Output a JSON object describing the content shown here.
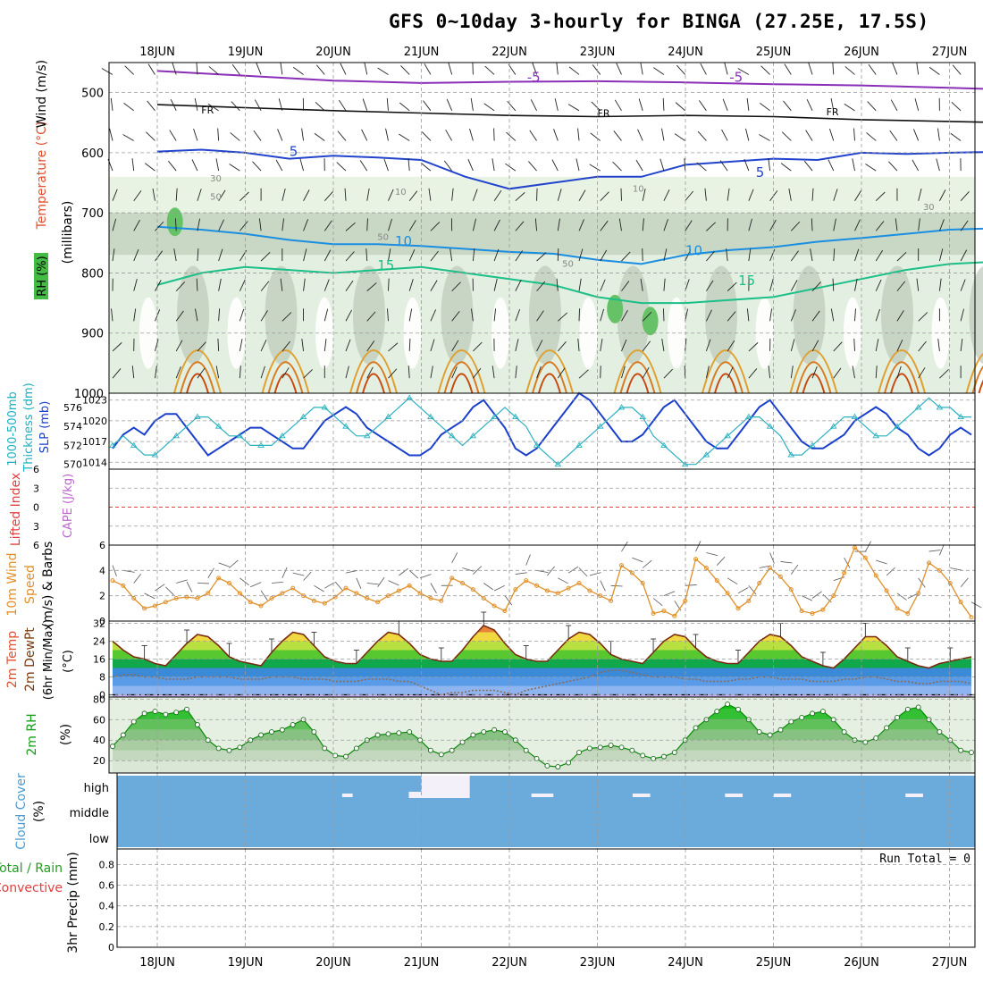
{
  "title": "GFS 0~10day 3-hourly for BINGA (27.25E, 17.5S)",
  "chart_data": [
    {
      "type": "heatmap",
      "id": "upper-air",
      "x_date_labels": [
        "18JUN",
        "19JUN",
        "20JUN",
        "21JUN",
        "22JUN",
        "23JUN",
        "24JUN",
        "25JUN",
        "26JUN",
        "27JUN"
      ],
      "ylabel_parts": [
        "RH (%)",
        "Temperature (°C)",
        "Wind (m/s)"
      ],
      "ylabel_units": "(millibars)",
      "y_ticks": [
        500,
        600,
        700,
        800,
        900,
        1000
      ],
      "ylim": [
        450,
        1000
      ],
      "freezing_label": "FR",
      "temp_labels": [
        "-5",
        "-5",
        "5",
        "5",
        "10",
        "10",
        "15",
        "15"
      ],
      "rh_labels": [
        "30",
        "50",
        "10",
        "50",
        "50",
        "10",
        "30"
      ],
      "isotherms": [
        {
          "value": -5,
          "color": "#8a2fb8",
          "points": [
            [
              0,
              464
            ],
            [
              1,
              472
            ],
            [
              2,
              480
            ],
            [
              3,
              484
            ],
            [
              4,
              482
            ],
            [
              5,
              481
            ],
            [
              6,
              483
            ],
            [
              7,
              486
            ],
            [
              8,
              488
            ],
            [
              9,
              492
            ],
            [
              9.7,
              495
            ]
          ]
        },
        {
          "value": 0,
          "color": "#111111",
          "points": [
            [
              0,
              520
            ],
            [
              1,
              525
            ],
            [
              2,
              530
            ],
            [
              3,
              534
            ],
            [
              4,
              538
            ],
            [
              5,
              540
            ],
            [
              6,
              538
            ],
            [
              7,
              540
            ],
            [
              8,
              545
            ],
            [
              9,
              548
            ],
            [
              9.7,
              550
            ]
          ]
        },
        {
          "value": 5,
          "color": "#2244cc",
          "points": [
            [
              0,
              598
            ],
            [
              0.5,
              595
            ],
            [
              1,
              600
            ],
            [
              1.5,
              610
            ],
            [
              2,
              605
            ],
            [
              2.5,
              608
            ],
            [
              3,
              612
            ],
            [
              3.5,
              640
            ],
            [
              4,
              660
            ],
            [
              4.5,
              650
            ],
            [
              5,
              640
            ],
            [
              5.5,
              640
            ],
            [
              6,
              620
            ],
            [
              6.5,
              615
            ],
            [
              7,
              610
            ],
            [
              7.5,
              612
            ],
            [
              8,
              600
            ],
            [
              8.5,
              602
            ],
            [
              9,
              600
            ],
            [
              9.7,
              598
            ]
          ]
        },
        {
          "value": 10,
          "color": "#1a8ee0",
          "points": [
            [
              0,
              723
            ],
            [
              0.5,
              728
            ],
            [
              1,
              735
            ],
            [
              1.5,
              745
            ],
            [
              2,
              752
            ],
            [
              2.5,
              752
            ],
            [
              3,
              755
            ],
            [
              3.5,
              760
            ],
            [
              4,
              765
            ],
            [
              4.5,
              768
            ],
            [
              5,
              778
            ],
            [
              5.5,
              785
            ],
            [
              6,
              770
            ],
            [
              6.5,
              762
            ],
            [
              7,
              757
            ],
            [
              7.5,
              748
            ],
            [
              8,
              742
            ],
            [
              8.5,
              735
            ],
            [
              9,
              728
            ],
            [
              9.7,
              725
            ]
          ]
        },
        {
          "value": 15,
          "color": "#1bbf88",
          "points": [
            [
              0,
              820
            ],
            [
              0.5,
              800
            ],
            [
              1,
              790
            ],
            [
              1.5,
              795
            ],
            [
              2,
              800
            ],
            [
              2.5,
              795
            ],
            [
              3,
              790
            ],
            [
              3.5,
              800
            ],
            [
              4,
              810
            ],
            [
              4.5,
              820
            ],
            [
              5,
              840
            ],
            [
              5.5,
              850
            ],
            [
              6,
              850
            ],
            [
              6.5,
              845
            ],
            [
              7,
              840
            ],
            [
              7.5,
              825
            ],
            [
              8,
              810
            ],
            [
              8.5,
              795
            ],
            [
              9,
              785
            ],
            [
              9.7,
              780
            ]
          ]
        }
      ]
    },
    {
      "type": "line",
      "id": "slp-thickness",
      "ylabel_parts": [
        "1000-500mb",
        "Thickness (dm)",
        "SLP (mb)"
      ],
      "left_ticks": [
        570,
        572,
        574,
        576
      ],
      "left_lim": [
        569.5,
        577.5
      ],
      "right_ticks": [
        1014,
        1017,
        1020,
        1023
      ],
      "right_lim": [
        1013,
        1024
      ],
      "series": [
        {
          "name": "SLP (mb)",
          "axis": "right",
          "color": "#1a3fcc",
          "values": [
            1016,
            1018,
            1019,
            1018,
            1020,
            1021,
            1021,
            1019,
            1017,
            1015,
            1016,
            1017,
            1018,
            1019,
            1019,
            1018,
            1017,
            1016,
            1016,
            1018,
            1020,
            1021,
            1022,
            1021,
            1019,
            1018,
            1017,
            1016,
            1015,
            1015,
            1016,
            1018,
            1019,
            1020,
            1022,
            1023,
            1021,
            1019,
            1016,
            1015,
            1016,
            1018,
            1020,
            1022,
            1024,
            1023,
            1021,
            1019,
            1017,
            1017,
            1018,
            1020,
            1022,
            1023,
            1021,
            1019,
            1017,
            1016,
            1016,
            1018,
            1020,
            1022,
            1023,
            1021,
            1019,
            1017,
            1016,
            1016,
            1017,
            1018,
            1020,
            1021,
            1022,
            1021,
            1019,
            1018,
            1016,
            1015,
            1016,
            1018,
            1019,
            1018
          ]
        },
        {
          "name": "Thickness (dm)",
          "axis": "left",
          "color": "#2ab0c0",
          "values": [
            572,
            573,
            572,
            571,
            571,
            572,
            573,
            574,
            575,
            575,
            574,
            573,
            573,
            572,
            572,
            572,
            573,
            574,
            575,
            576,
            576,
            575,
            574,
            573,
            573,
            574,
            575,
            576,
            577,
            576,
            575,
            574,
            573,
            572,
            573,
            574,
            575,
            576,
            575,
            574,
            572,
            571,
            570,
            571,
            572,
            573,
            574,
            575,
            576,
            576,
            575,
            573,
            572,
            571,
            570,
            570,
            571,
            572,
            573,
            574,
            575,
            575,
            574,
            573,
            571,
            571,
            572,
            573,
            574,
            575,
            575,
            574,
            573,
            573,
            574,
            575,
            576,
            577,
            576,
            576,
            575,
            575
          ]
        }
      ]
    },
    {
      "type": "line",
      "id": "lifted-index",
      "ylabel_parts": [
        "Lifted Index",
        "CAPE (J/kg)"
      ],
      "y_ticks": [
        6,
        3,
        0,
        -3,
        -6
      ],
      "ylim": [
        -6,
        6
      ],
      "reference_value": 0
    },
    {
      "type": "line",
      "id": "wind10m",
      "ylabel_parts": [
        "10m Wind",
        "Speed",
        "(m/s) & Barbs"
      ],
      "y_ticks": [
        0,
        2,
        4,
        6
      ],
      "ylim": [
        0,
        6
      ],
      "series": [
        {
          "name": "Speed",
          "color": "#e0902a",
          "values": [
            3.2,
            2.8,
            1.8,
            1.0,
            1.2,
            1.5,
            1.8,
            1.9,
            1.8,
            2.2,
            3.4,
            3.0,
            2.2,
            1.5,
            1.2,
            1.8,
            2.2,
            2.6,
            2.0,
            1.6,
            1.4,
            1.9,
            2.6,
            2.2,
            1.8,
            1.5,
            2.0,
            2.4,
            2.8,
            2.2,
            1.8,
            1.6,
            3.4,
            3.0,
            2.5,
            1.8,
            1.2,
            0.8,
            2.5,
            3.2,
            2.8,
            2.4,
            2.2,
            2.6,
            3.0,
            2.4,
            2.0,
            1.6,
            4.4,
            3.8,
            3.0,
            0.6,
            0.8,
            0.4,
            1.6,
            4.9,
            4.2,
            3.2,
            2.2,
            1.0,
            1.6,
            3.0,
            4.2,
            3.5,
            2.5,
            0.8,
            0.6,
            0.9,
            2.0,
            3.8,
            5.8,
            5.0,
            3.6,
            2.4,
            1.0,
            0.6,
            2.2,
            4.6,
            4.0,
            3.0,
            1.5,
            0.3
          ]
        }
      ]
    },
    {
      "type": "area",
      "id": "temp2m",
      "ylabel_parts": [
        "2m Temp",
        "2m DewPt",
        "(6hr Min/Max)",
        "(°C)"
      ],
      "y_ticks": [
        0,
        8,
        16,
        24,
        32
      ],
      "ylim": [
        -1,
        33
      ],
      "series": [
        {
          "name": "2m Temp",
          "color": "#7a2a10",
          "values": [
            24,
            20,
            17,
            16,
            14,
            13,
            18,
            23,
            27,
            26,
            22,
            17,
            15,
            14,
            13,
            19,
            24,
            28,
            27,
            22,
            17,
            15,
            14,
            14,
            19,
            24,
            28,
            27,
            23,
            18,
            16,
            15,
            15,
            20,
            26,
            31,
            29,
            23,
            18,
            16,
            15,
            15,
            20,
            25,
            28,
            27,
            23,
            18,
            16,
            15,
            14,
            19,
            24,
            27,
            26,
            21,
            17,
            15,
            14,
            14,
            19,
            24,
            27,
            26,
            22,
            17,
            15,
            13,
            12,
            16,
            21,
            26,
            26,
            22,
            17,
            15,
            13,
            12,
            14,
            15,
            16,
            17
          ]
        },
        {
          "name": "2m DewPt",
          "color": "#8a6a55",
          "values": [
            8,
            9,
            9,
            8,
            8,
            7,
            7,
            7,
            8,
            8,
            8,
            8,
            7,
            7,
            7,
            8,
            8,
            8,
            7,
            7,
            7,
            6,
            6,
            6,
            7,
            7,
            7,
            6,
            6,
            4,
            2,
            0,
            1,
            1,
            2,
            2,
            2,
            1,
            0,
            2,
            3,
            4,
            5,
            6,
            7,
            8,
            10,
            11,
            11,
            10,
            9,
            8,
            8,
            8,
            7,
            7,
            6,
            6,
            6,
            7,
            7,
            8,
            8,
            7,
            7,
            7,
            6,
            6,
            6,
            7,
            7,
            8,
            8,
            7,
            6,
            6,
            5,
            5,
            6,
            6,
            6,
            5
          ]
        }
      ]
    },
    {
      "type": "area",
      "id": "rh2m",
      "ylabel_parts": [
        "2m RH",
        "(%)"
      ],
      "y_ticks": [
        20,
        40,
        60,
        80
      ],
      "ylim": [
        8,
        82
      ],
      "series": [
        {
          "name": "2m RH",
          "color": "#0a8a0a",
          "values": [
            34,
            45,
            58,
            66,
            68,
            65,
            67,
            70,
            55,
            40,
            32,
            30,
            33,
            40,
            45,
            48,
            50,
            55,
            60,
            48,
            32,
            25,
            24,
            32,
            40,
            45,
            46,
            47,
            48,
            40,
            30,
            26,
            30,
            38,
            45,
            48,
            50,
            48,
            40,
            30,
            22,
            15,
            14,
            18,
            28,
            32,
            33,
            35,
            33,
            30,
            25,
            22,
            24,
            28,
            40,
            52,
            60,
            68,
            75,
            70,
            60,
            48,
            45,
            50,
            58,
            62,
            66,
            68,
            60,
            48,
            40,
            38,
            42,
            52,
            62,
            70,
            72,
            60,
            48,
            40,
            30,
            28
          ]
        }
      ]
    },
    {
      "type": "heatmap",
      "id": "cloud-cover",
      "ylabel_parts": [
        "Cloud Cover",
        "(%)"
      ],
      "levels": [
        "high",
        "middle",
        "low"
      ],
      "high_gaps": [
        [
          2.1,
          2.22
        ],
        [
          3.0,
          3.55
        ],
        [
          4.25,
          4.5
        ],
        [
          5.4,
          5.6
        ],
        [
          6.45,
          6.65
        ],
        [
          7.0,
          7.2
        ],
        [
          8.5,
          8.7
        ],
        [
          9.55,
          9.65
        ]
      ]
    },
    {
      "type": "bar",
      "id": "precip",
      "ylabel_parts": [
        "Total / Rain",
        "Convective",
        "3hr Precip (mm)"
      ],
      "y_ticks": [
        0,
        0.2,
        0.4,
        0.6,
        0.8
      ],
      "ylim": [
        0,
        0.95
      ],
      "run_total_label": "Run Total = 0",
      "values": []
    }
  ]
}
